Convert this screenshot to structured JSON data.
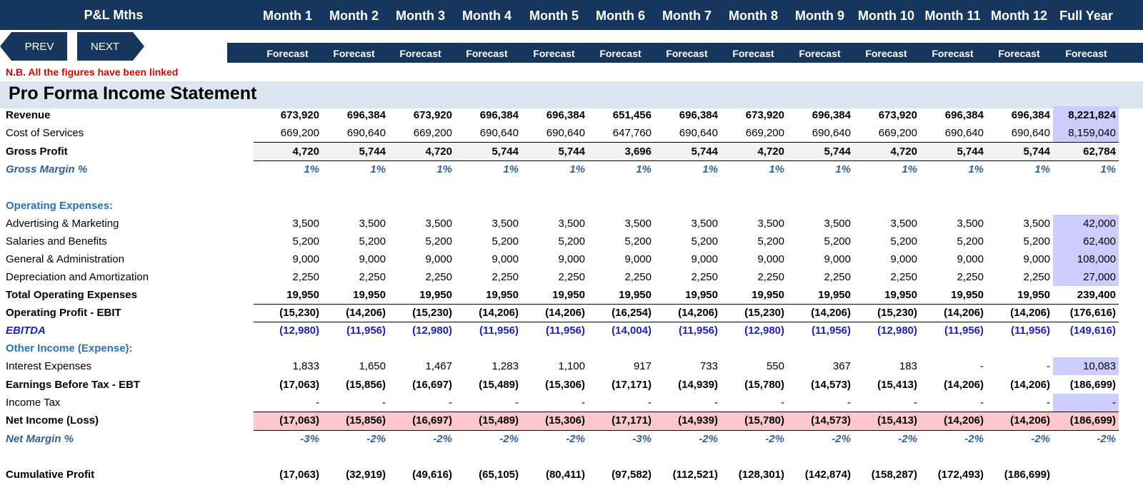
{
  "header": {
    "title": "P&L Mths",
    "months": [
      "Month 1",
      "Month 2",
      "Month 3",
      "Month 4",
      "Month 5",
      "Month 6",
      "Month 7",
      "Month 8",
      "Month 9",
      "Month 10",
      "Month 11",
      "Month 12",
      "Full Year"
    ],
    "subheads": [
      "Forecast",
      "Forecast",
      "Forecast",
      "Forecast",
      "Forecast",
      "Forecast",
      "Forecast",
      "Forecast",
      "Forecast",
      "Forecast",
      "Forecast",
      "Forecast",
      "Forecast"
    ]
  },
  "nav": {
    "prev_label": "PREV",
    "next_label": "NEXT"
  },
  "note": "N.B. All the figures have been linked",
  "section_title": "Pro Forma Income Statement",
  "colors": {
    "header_bg": "#17365d",
    "section_bg": "#dce6f2",
    "full_year_input": "#ccccff",
    "gross_band": "#f2f2f2",
    "net_band": "#ffc7ce",
    "note": "#d00000"
  },
  "rows": [
    {
      "key": "revenue",
      "label": "Revenue",
      "values": [
        "673,920",
        "696,384",
        "673,920",
        "696,384",
        "696,384",
        "651,456",
        "696,384",
        "673,920",
        "696,384",
        "673,920",
        "696,384",
        "696,384",
        "8,221,824"
      ]
    },
    {
      "key": "cos",
      "label": "Cost of Services",
      "values": [
        "669,200",
        "690,640",
        "669,200",
        "690,640",
        "690,640",
        "647,760",
        "690,640",
        "669,200",
        "690,640",
        "669,200",
        "690,640",
        "690,640",
        "8,159,040"
      ]
    },
    {
      "key": "gross",
      "label": "Gross Profit",
      "values": [
        "4,720",
        "5,744",
        "4,720",
        "5,744",
        "5,744",
        "3,696",
        "5,744",
        "4,720",
        "5,744",
        "4,720",
        "5,744",
        "5,744",
        "62,784"
      ]
    },
    {
      "key": "gm",
      "label": "Gross Margin %",
      "values": [
        "1%",
        "1%",
        "1%",
        "1%",
        "1%",
        "1%",
        "1%",
        "1%",
        "1%",
        "1%",
        "1%",
        "1%",
        "1%"
      ]
    },
    {
      "key": "opex_head",
      "label": "Operating Expenses:",
      "values": []
    },
    {
      "key": "adv",
      "label": "Advertising & Marketing",
      "values": [
        "3,500",
        "3,500",
        "3,500",
        "3,500",
        "3,500",
        "3,500",
        "3,500",
        "3,500",
        "3,500",
        "3,500",
        "3,500",
        "3,500",
        "42,000"
      ]
    },
    {
      "key": "sal",
      "label": "Salaries and Benefits",
      "values": [
        "5,200",
        "5,200",
        "5,200",
        "5,200",
        "5,200",
        "5,200",
        "5,200",
        "5,200",
        "5,200",
        "5,200",
        "5,200",
        "5,200",
        "62,400"
      ]
    },
    {
      "key": "ga",
      "label": "General & Administration",
      "values": [
        "9,000",
        "9,000",
        "9,000",
        "9,000",
        "9,000",
        "9,000",
        "9,000",
        "9,000",
        "9,000",
        "9,000",
        "9,000",
        "9,000",
        "108,000"
      ]
    },
    {
      "key": "da",
      "label": "Depreciation and Amortization",
      "values": [
        "2,250",
        "2,250",
        "2,250",
        "2,250",
        "2,250",
        "2,250",
        "2,250",
        "2,250",
        "2,250",
        "2,250",
        "2,250",
        "2,250",
        "27,000"
      ]
    },
    {
      "key": "topex",
      "label": "Total Operating Expenses",
      "values": [
        "19,950",
        "19,950",
        "19,950",
        "19,950",
        "19,950",
        "19,950",
        "19,950",
        "19,950",
        "19,950",
        "19,950",
        "19,950",
        "19,950",
        "239,400"
      ]
    },
    {
      "key": "ebit",
      "label": "Operating Profit - EBIT",
      "values": [
        "(15,230)",
        "(14,206)",
        "(15,230)",
        "(14,206)",
        "(14,206)",
        "(16,254)",
        "(14,206)",
        "(15,230)",
        "(14,206)",
        "(15,230)",
        "(14,206)",
        "(14,206)",
        "(176,616)"
      ]
    },
    {
      "key": "ebitda",
      "label": "EBITDA",
      "values": [
        "(12,980)",
        "(11,956)",
        "(12,980)",
        "(11,956)",
        "(11,956)",
        "(14,004)",
        "(11,956)",
        "(12,980)",
        "(11,956)",
        "(12,980)",
        "(11,956)",
        "(11,956)",
        "(149,616)"
      ]
    },
    {
      "key": "oi_head",
      "label": "Other Income (Expense):",
      "values": []
    },
    {
      "key": "int",
      "label": "Interest Expenses",
      "values": [
        "1,833",
        "1,650",
        "1,467",
        "1,283",
        "1,100",
        "917",
        "733",
        "550",
        "367",
        "183",
        "-",
        "-",
        "10,083"
      ]
    },
    {
      "key": "ebt",
      "label": "Earnings Before Tax - EBT",
      "values": [
        "(17,063)",
        "(15,856)",
        "(16,697)",
        "(15,489)",
        "(15,306)",
        "(17,171)",
        "(14,939)",
        "(15,780)",
        "(14,573)",
        "(15,413)",
        "(14,206)",
        "(14,206)",
        "(186,699)"
      ]
    },
    {
      "key": "tax",
      "label": "Income Tax",
      "values": [
        "-",
        "-",
        "-",
        "-",
        "-",
        "-",
        "-",
        "-",
        "-",
        "-",
        "-",
        "-",
        "-"
      ]
    },
    {
      "key": "net",
      "label": "Net Income (Loss)",
      "values": [
        "(17,063)",
        "(15,856)",
        "(16,697)",
        "(15,489)",
        "(15,306)",
        "(17,171)",
        "(14,939)",
        "(15,780)",
        "(14,573)",
        "(15,413)",
        "(14,206)",
        "(14,206)",
        "(186,699)"
      ]
    },
    {
      "key": "nm",
      "label": "Net Margin %",
      "values": [
        "-3%",
        "-2%",
        "-2%",
        "-2%",
        "-2%",
        "-3%",
        "-2%",
        "-2%",
        "-2%",
        "-2%",
        "-2%",
        "-2%",
        "-2%"
      ]
    },
    {
      "key": "cum",
      "label": "Cumulative Profit",
      "values": [
        "(17,063)",
        "(32,919)",
        "(49,616)",
        "(65,105)",
        "(80,411)",
        "(97,582)",
        "(112,521)",
        "(128,301)",
        "(142,874)",
        "(158,287)",
        "(172,493)",
        "(186,699)",
        ""
      ]
    }
  ]
}
